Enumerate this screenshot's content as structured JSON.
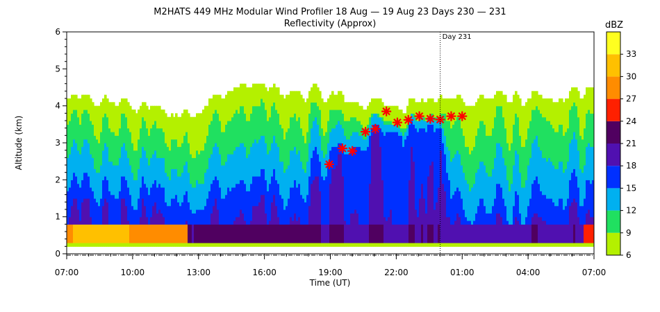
{
  "chart_data": {
    "type": "heatmap",
    "title": "M2HATS 449 MHz Modular Wind Profiler  18 Aug — 19 Aug 23 Days 230 — 231",
    "subtitle": "Reflectivity (Approx)",
    "xlabel": "Time (UT)",
    "ylabel": "Altitude (km)",
    "x_ticks": [
      "07:00",
      "10:00",
      "13:00",
      "16:00",
      "19:00",
      "22:00",
      "01:00",
      "04:00",
      "07:00"
    ],
    "y_ticks": [
      "0",
      "1",
      "2",
      "3",
      "4",
      "5",
      "6"
    ],
    "x_range_hours": [
      0,
      24
    ],
    "ylim": [
      0,
      6
    ],
    "day_marker": {
      "label": "Day 231",
      "x_hour": 17
    },
    "colorbar": {
      "unit": "dBZ",
      "ticks": [
        "6",
        "9",
        "12",
        "15",
        "18",
        "21",
        "24",
        "27",
        "30",
        "33"
      ],
      "levels": [
        6,
        9,
        12,
        15,
        18,
        21,
        24,
        27,
        30,
        33,
        36
      ],
      "colors": [
        "#b4f000",
        "#20e060",
        "#00b0f0",
        "#0030ff",
        "#5010b0",
        "#500060",
        "#ff2000",
        "#ff8c00",
        "#ffc000",
        "#ffff20"
      ]
    },
    "boundary_layer_markers": [
      {
        "x_hour": 11.95,
        "y": 2.42
      },
      {
        "x_hour": 12.55,
        "y": 2.85
      },
      {
        "x_hour": 13.0,
        "y": 2.78
      },
      {
        "x_hour": 13.6,
        "y": 3.3
      },
      {
        "x_hour": 14.05,
        "y": 3.38
      },
      {
        "x_hour": 14.55,
        "y": 3.85
      },
      {
        "x_hour": 15.05,
        "y": 3.55
      },
      {
        "x_hour": 15.55,
        "y": 3.62
      },
      {
        "x_hour": 16.05,
        "y": 3.72
      },
      {
        "x_hour": 16.55,
        "y": 3.65
      },
      {
        "x_hour": 17.0,
        "y": 3.63
      },
      {
        "x_hour": 17.5,
        "y": 3.72
      },
      {
        "x_hour": 18.0,
        "y": 3.72
      }
    ],
    "marker_color": "#ff0000"
  }
}
